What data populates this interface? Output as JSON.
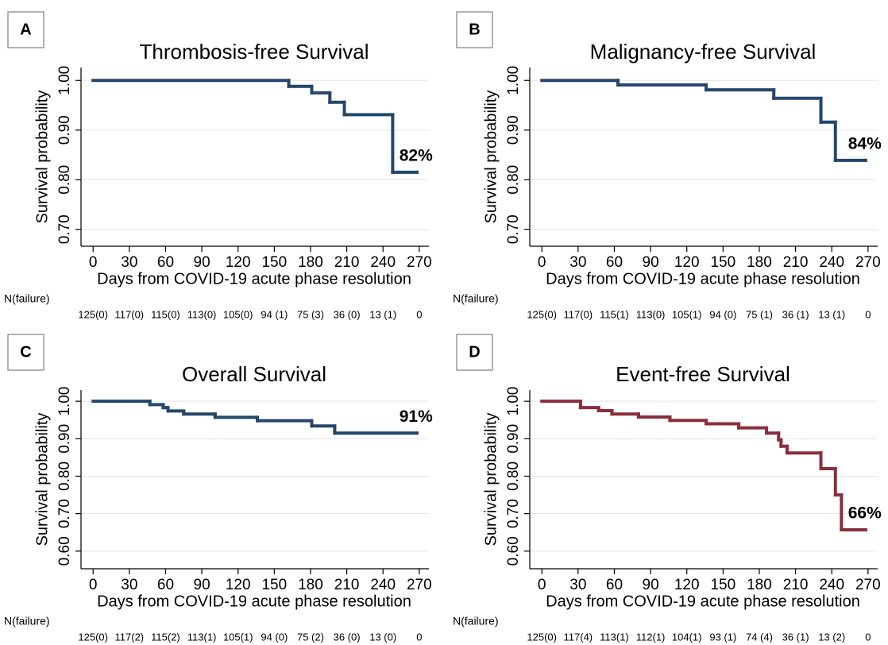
{
  "chart_data": [
    {
      "type": "step",
      "panel": "A",
      "title": "Thrombosis-free Survival",
      "xlabel": "Days from COVID-19 acute phase resolution",
      "ylabel": "Survival probability",
      "x": [
        0,
        162,
        181,
        196,
        208,
        248,
        268
      ],
      "values": [
        1.0,
        0.988,
        0.975,
        0.956,
        0.931,
        0.815,
        0.815
      ],
      "color": "#24476b",
      "xlim": [
        -10,
        278
      ],
      "ylim": [
        0.666,
        1.026
      ],
      "xticks": [
        0,
        30,
        60,
        90,
        120,
        150,
        180,
        210,
        240,
        270
      ],
      "yticks": [
        {
          "value": 0.7,
          "label": "0.70"
        },
        {
          "value": 0.8,
          "label": "0.80"
        },
        {
          "value": 0.9,
          "label": "0.90"
        },
        {
          "value": 1.0,
          "label": "1.00"
        }
      ],
      "grid": true,
      "annotation": "82%",
      "risk_table": {
        "label": "N(failure)",
        "entries": [
          "125(0)",
          "117(0)",
          "115(0)",
          "113(0)",
          "105(0)",
          "94 (1)",
          "75 (3)",
          "36 (0)",
          "13 (1)",
          "0"
        ]
      }
    },
    {
      "type": "step",
      "panel": "B",
      "title": "Malignancy-free Survival",
      "xlabel": "Days from COVID-19 acute phase resolution",
      "ylabel": "Survival probability",
      "x": [
        0,
        63,
        136,
        192,
        231,
        243,
        268
      ],
      "values": [
        1.0,
        0.991,
        0.981,
        0.964,
        0.916,
        0.839,
        0.839
      ],
      "color": "#24476b",
      "xlim": [
        -10,
        278
      ],
      "ylim": [
        0.666,
        1.026
      ],
      "xticks": [
        0,
        30,
        60,
        90,
        120,
        150,
        180,
        210,
        240,
        270
      ],
      "yticks": [
        {
          "value": 0.7,
          "label": "0.70"
        },
        {
          "value": 0.8,
          "label": "0.80"
        },
        {
          "value": 0.9,
          "label": "0.90"
        },
        {
          "value": 1.0,
          "label": "1.00"
        }
      ],
      "grid": true,
      "annotation": "84%",
      "risk_table": {
        "label": "N(failure)",
        "entries": [
          "125(0)",
          "117(0)",
          "115(1)",
          "113(0)",
          "105(1)",
          "94 (0)",
          "75 (1)",
          "36 (1)",
          "13 (1)",
          "0"
        ]
      }
    },
    {
      "type": "step",
      "panel": "C",
      "title": "Overall Survival",
      "xlabel": "Days from COVID-19 acute phase resolution",
      "ylabel": "Survival probability",
      "x": [
        0,
        47,
        58,
        62,
        75,
        101,
        136,
        181,
        200,
        268
      ],
      "values": [
        1.0,
        0.991,
        0.983,
        0.974,
        0.966,
        0.957,
        0.948,
        0.934,
        0.915,
        0.915
      ],
      "color": "#24476b",
      "xlim": [
        -10,
        278
      ],
      "ylim": [
        0.553,
        1.03
      ],
      "xticks": [
        0,
        30,
        60,
        90,
        120,
        150,
        180,
        210,
        240,
        270
      ],
      "yticks": [
        {
          "value": 0.6,
          "label": "0.60"
        },
        {
          "value": 0.7,
          "label": "0.70"
        },
        {
          "value": 0.8,
          "label": "0.80"
        },
        {
          "value": 0.9,
          "label": "0.90"
        },
        {
          "value": 1.0,
          "label": "1.00"
        }
      ],
      "grid": true,
      "annotation": "91%",
      "risk_table": {
        "label": "N(failure)",
        "entries": [
          "125(0)",
          "117(2)",
          "115(2)",
          "113(1)",
          "105(1)",
          "94 (0)",
          "75 (2)",
          "36 (0)",
          "13 (0)",
          "0"
        ]
      }
    },
    {
      "type": "step",
      "panel": "D",
      "title": "Event-free Survival",
      "xlabel": "Days from COVID-19 acute phase resolution",
      "ylabel": "Survival probability",
      "x": [
        0,
        32,
        47,
        58,
        80,
        106,
        136,
        163,
        186,
        196,
        198,
        203,
        231,
        243,
        248,
        268
      ],
      "values": [
        1.0,
        0.983,
        0.975,
        0.966,
        0.958,
        0.949,
        0.94,
        0.929,
        0.915,
        0.897,
        0.88,
        0.862,
        0.82,
        0.75,
        0.657,
        0.657
      ],
      "color": "#8b2e3b",
      "xlim": [
        -10,
        278
      ],
      "ylim": [
        0.553,
        1.03
      ],
      "xticks": [
        0,
        30,
        60,
        90,
        120,
        150,
        180,
        210,
        240,
        270
      ],
      "yticks": [
        {
          "value": 0.6,
          "label": "0.60"
        },
        {
          "value": 0.7,
          "label": "0.70"
        },
        {
          "value": 0.8,
          "label": "0.80"
        },
        {
          "value": 0.9,
          "label": "0.90"
        },
        {
          "value": 1.0,
          "label": "1.00"
        }
      ],
      "grid": true,
      "annotation": "66%",
      "risk_table": {
        "label": "N(failure)",
        "entries": [
          "125(0)",
          "117(4)",
          "113(1)",
          "112(1)",
          "104(1)",
          "93 (1)",
          "74 (4)",
          "36 (1)",
          "13 (2)",
          "0"
        ]
      }
    }
  ]
}
